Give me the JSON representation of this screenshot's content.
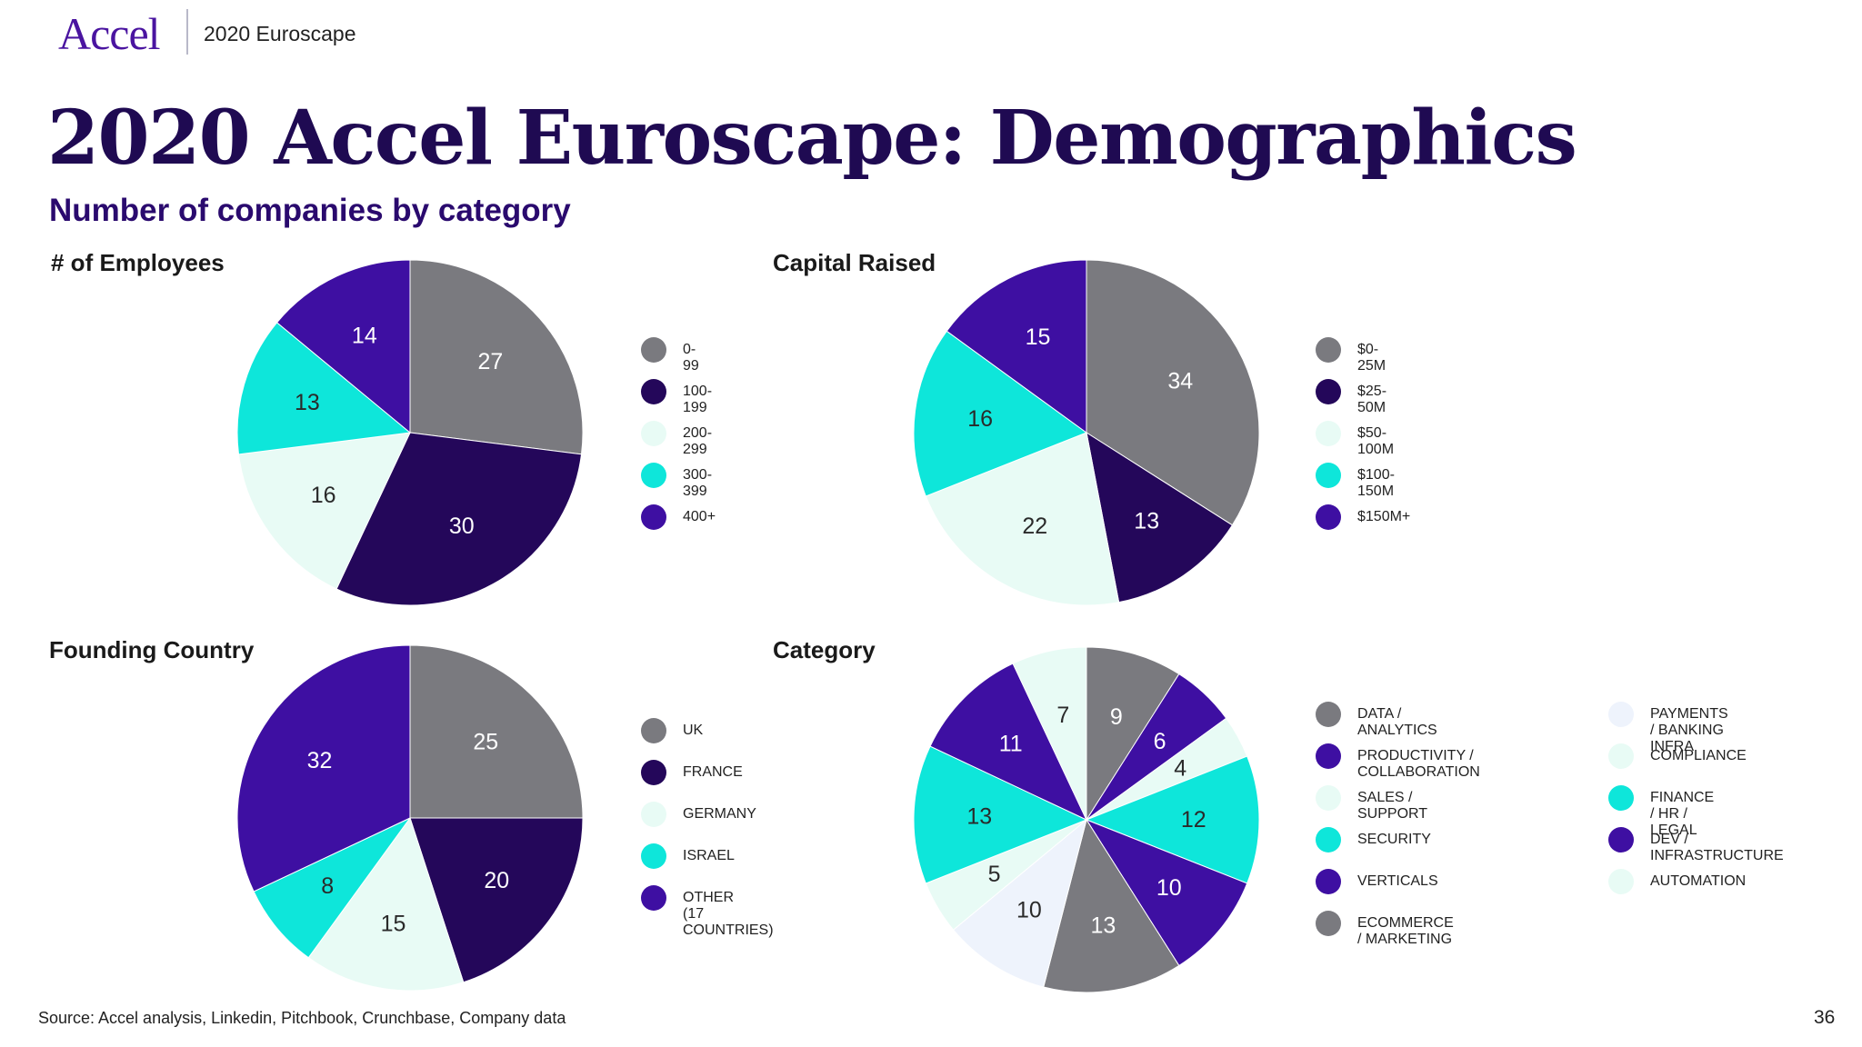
{
  "header": {
    "brand": "Accel",
    "section": "2020 Euroscape"
  },
  "title": "2020 Accel Euroscape: Demographics",
  "subtitle": "Number of companies by category",
  "footer": {
    "source": "Source: Accel analysis, Linkedin, Pitchbook, Crunchbase, Company data",
    "page_number": "36"
  },
  "colors": {
    "gray": "#7a7a7f",
    "dark_purple": "#24075a",
    "mint": "#e8fbf5",
    "cyan": "#0ee6da",
    "purple": "#3e0fa2",
    "light_blue": "#eef3fc"
  },
  "chart_data": [
    {
      "type": "pie",
      "title": "# of Employees",
      "categories": [
        "0-99",
        "30",
        "16",
        "13",
        "14"
      ],
      "legend": [
        "0-99",
        "100-199",
        "200-299",
        "300-399",
        "400+"
      ],
      "values": [
        27,
        30,
        16,
        13,
        14
      ],
      "colors": [
        "#7a7a7f",
        "#24075a",
        "#e8fbf5",
        "#0ee6da",
        "#3e0fa2"
      ],
      "label_colors": [
        "#ffffff",
        "#ffffff",
        "#2a2a2a",
        "#2a2a2a",
        "#ffffff"
      ]
    },
    {
      "type": "pie",
      "title": "Capital Raised",
      "legend": [
        "$0-25M",
        "$25-50M",
        "$50-100M",
        "$100-150M",
        "$150M+"
      ],
      "values": [
        34,
        13,
        22,
        16,
        15
      ],
      "colors": [
        "#7a7a7f",
        "#24075a",
        "#e8fbf5",
        "#0ee6da",
        "#3e0fa2"
      ],
      "label_colors": [
        "#ffffff",
        "#ffffff",
        "#2a2a2a",
        "#2a2a2a",
        "#ffffff"
      ]
    },
    {
      "type": "pie",
      "title": "Founding Country",
      "legend": [
        "UK",
        "FRANCE",
        "GERMANY",
        "ISRAEL",
        "OTHER\n(17 COUNTRIES)"
      ],
      "values": [
        25,
        20,
        15,
        8,
        32
      ],
      "colors": [
        "#7a7a7f",
        "#24075a",
        "#e8fbf5",
        "#0ee6da",
        "#3e0fa2"
      ],
      "label_colors": [
        "#ffffff",
        "#ffffff",
        "#2a2a2a",
        "#2a2a2a",
        "#ffffff"
      ]
    },
    {
      "type": "pie",
      "title": "Category",
      "slices": [
        {
          "label": "DATA / ANALYTICS",
          "value": 9,
          "color": "#7a7a7f",
          "label_color": "#ffffff"
        },
        {
          "label": "PRODUCTIVITY / COLLABORATION",
          "value": 6,
          "color": "#3e0fa2",
          "label_color": "#ffffff"
        },
        {
          "label": "SALES / SUPPORT",
          "value": 4,
          "color": "#e8fbf5",
          "label_color": "#2a2a2a"
        },
        {
          "label": "SECURITY",
          "value": 12,
          "color": "#0ee6da",
          "label_color": "#2a2a2a"
        },
        {
          "label": "VERTICALS",
          "value": 10,
          "color": "#3e0fa2",
          "label_color": "#ffffff"
        },
        {
          "label": "ECOMMERCE / MARKETING",
          "value": 13,
          "color": "#7a7a7f",
          "label_color": "#ffffff"
        },
        {
          "label": "PAYMENTS / BANKING INFRA",
          "value": 10,
          "color": "#eef3fc",
          "label_color": "#2a2a2a"
        },
        {
          "label": "COMPLIANCE",
          "value": 5,
          "color": "#e8fbf5",
          "label_color": "#2a2a2a"
        },
        {
          "label": "FINANCE / HR / LEGAL",
          "value": 13,
          "color": "#0ee6da",
          "label_color": "#2a2a2a"
        },
        {
          "label": "DEV / INFRASTRUCTURE",
          "value": 11,
          "color": "#3e0fa2",
          "label_color": "#ffffff"
        },
        {
          "label": "AUTOMATION",
          "value": 7,
          "color": "#e8fbf5",
          "label_color": "#2a2a2a"
        }
      ]
    }
  ]
}
